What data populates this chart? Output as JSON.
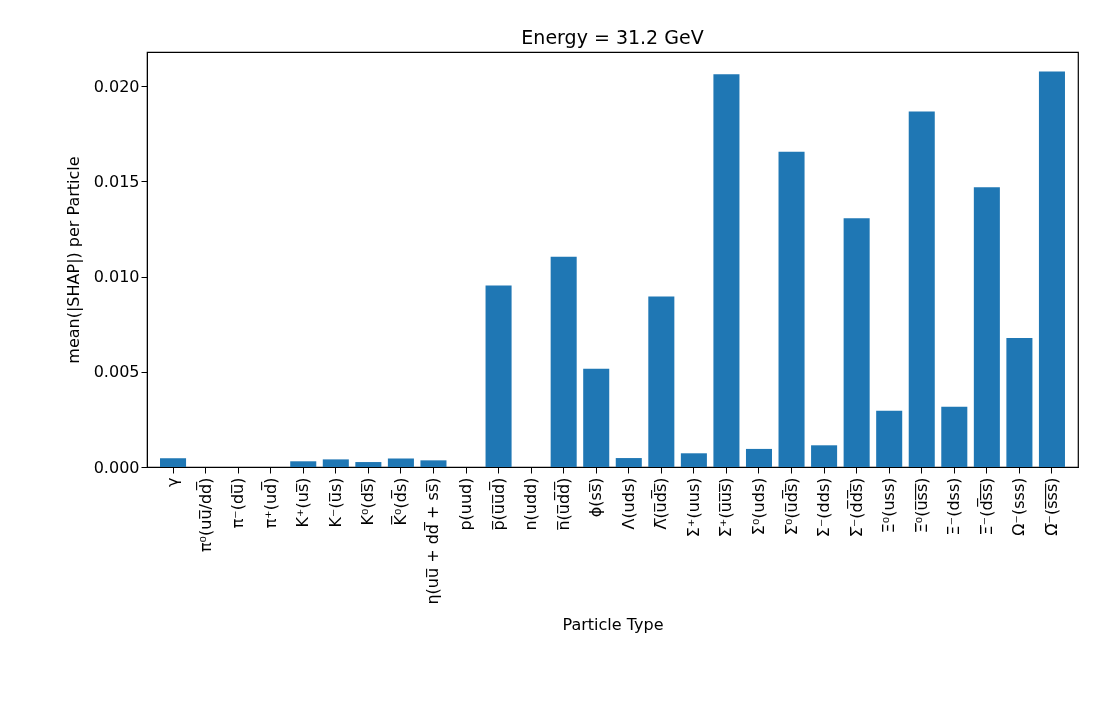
{
  "chart_data": {
    "type": "bar",
    "title": "Energy = 31.2 GeV",
    "xlabel": "Particle Type",
    "ylabel": "mean(|SHAP|) per Particle",
    "categories": [
      "γ",
      "π⁰(uu̅/dd̅)",
      "π⁻(du̅)",
      "π⁺(ud̅)",
      "K⁺(us̅)",
      "K⁻(u̅s)",
      "K⁰(ds̅)",
      "K̅⁰(d̅s)",
      "η(uu̅ + dd̅ + ss̅)",
      "p(uud)",
      "p̅(u̅u̅d̅)",
      "n(udd)",
      "n̅(u̅d̅d̅)",
      "ϕ(ss̅)",
      "Λ(uds)",
      "Λ̅(u̅d̅s̅)",
      "Σ⁺(uus)",
      "Σ̅⁺(u̅u̅s̅)",
      "Σ⁰(uds)",
      "Σ̅⁰(u̅d̅s̅)",
      "Σ⁻(dds)",
      "Σ̅⁻(d̅d̅s̅)",
      "Ξ⁰(uss)",
      "Ξ̅⁰(u̅s̅s̅)",
      "Ξ⁻(dss)",
      "Ξ̅⁻(d̅s̅s̅)",
      "Ω⁻(sss)",
      "Ω̅⁻(s̅s̅s̅)"
    ],
    "values": [
      0.00046,
      0,
      0,
      0,
      0.0003,
      0.0004,
      0.00026,
      0.00044,
      0.00035,
      0,
      0.00954,
      0,
      0.01105,
      0.00516,
      0.00047,
      0.00895,
      0.00072,
      0.02063,
      0.00095,
      0.01656,
      0.00114,
      0.01307,
      0.00295,
      0.01868,
      0.00317,
      0.0147,
      0.00677,
      0.02077
    ],
    "color": "#1f77b4",
    "ylim": [
      0,
      0.0218
    ],
    "yticks": [
      {
        "value": 0,
        "label": "0.000"
      },
      {
        "value": 0.005,
        "label": "0.005"
      },
      {
        "value": 0.01,
        "label": "0.010"
      },
      {
        "value": 0.015,
        "label": "0.015"
      },
      {
        "value": 0.02,
        "label": "0.020"
      }
    ],
    "grid": false
  }
}
